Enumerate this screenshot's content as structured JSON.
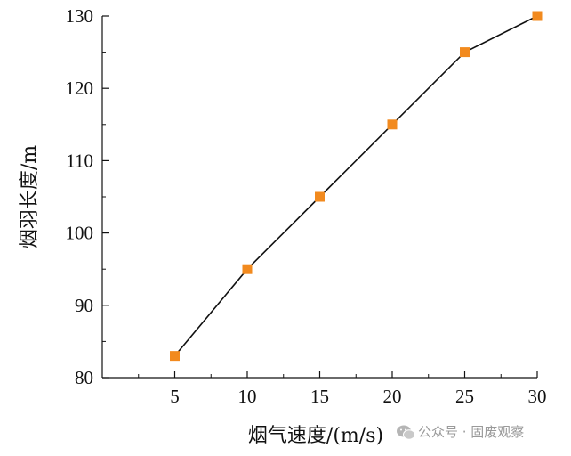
{
  "chart_data": {
    "type": "line",
    "xlabel": "烟气速度/(m/s)",
    "ylabel": "烟羽长度/m",
    "x": [
      5,
      10,
      15,
      20,
      25,
      30
    ],
    "series": [
      {
        "values": [
          83,
          95,
          105,
          115,
          125,
          130
        ]
      }
    ],
    "xlim": [
      0,
      30
    ],
    "ylim": [
      80,
      130
    ],
    "xticks": [
      "5",
      "10",
      "15",
      "20",
      "25",
      "30"
    ],
    "yticks": [
      "80",
      "90",
      "100",
      "110",
      "120",
      "130"
    ],
    "grid": false,
    "legend": "none",
    "colors": {
      "line": "#111111",
      "marker": "#f28a1e",
      "axis": "#111111"
    }
  },
  "watermark": {
    "text": "公众号 · 固废观察",
    "icon": "wechat-icon"
  }
}
